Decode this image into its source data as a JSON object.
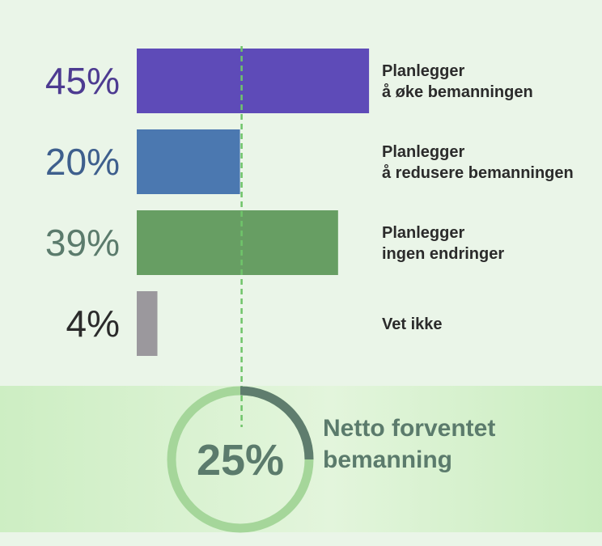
{
  "chart_data": {
    "type": "bar",
    "orientation": "horizontal",
    "categories": [
      [
        "Planlegger",
        "å øke bemanningen"
      ],
      [
        "Planlegger",
        "å redusere bemanningen"
      ],
      [
        "Planlegger",
        "ingen endringer"
      ],
      [
        "Vet ikke"
      ]
    ],
    "values": [
      45,
      20,
      39,
      4
    ],
    "value_labels": [
      "45%",
      "20%",
      "39%",
      "4%"
    ],
    "colors": [
      "#5e4bb8",
      "#4b78b0",
      "#679e63",
      "#9b989d"
    ],
    "label_colors": [
      "#4d3b91",
      "#3e5f8d",
      "#5b7b6c",
      "#2b2b2b"
    ],
    "reference_line": {
      "value": 20,
      "style": "dashed",
      "color": "#6fc46a"
    },
    "net": {
      "value": 25,
      "label": "25%",
      "caption": [
        "Netto forventet",
        "bemanning"
      ],
      "ring_color": "#a5d69a",
      "arc_color": "#5f7d6e"
    },
    "grid": false,
    "legend": "none",
    "background": "#eaf5e8",
    "panel_color": "#cdeec3"
  }
}
